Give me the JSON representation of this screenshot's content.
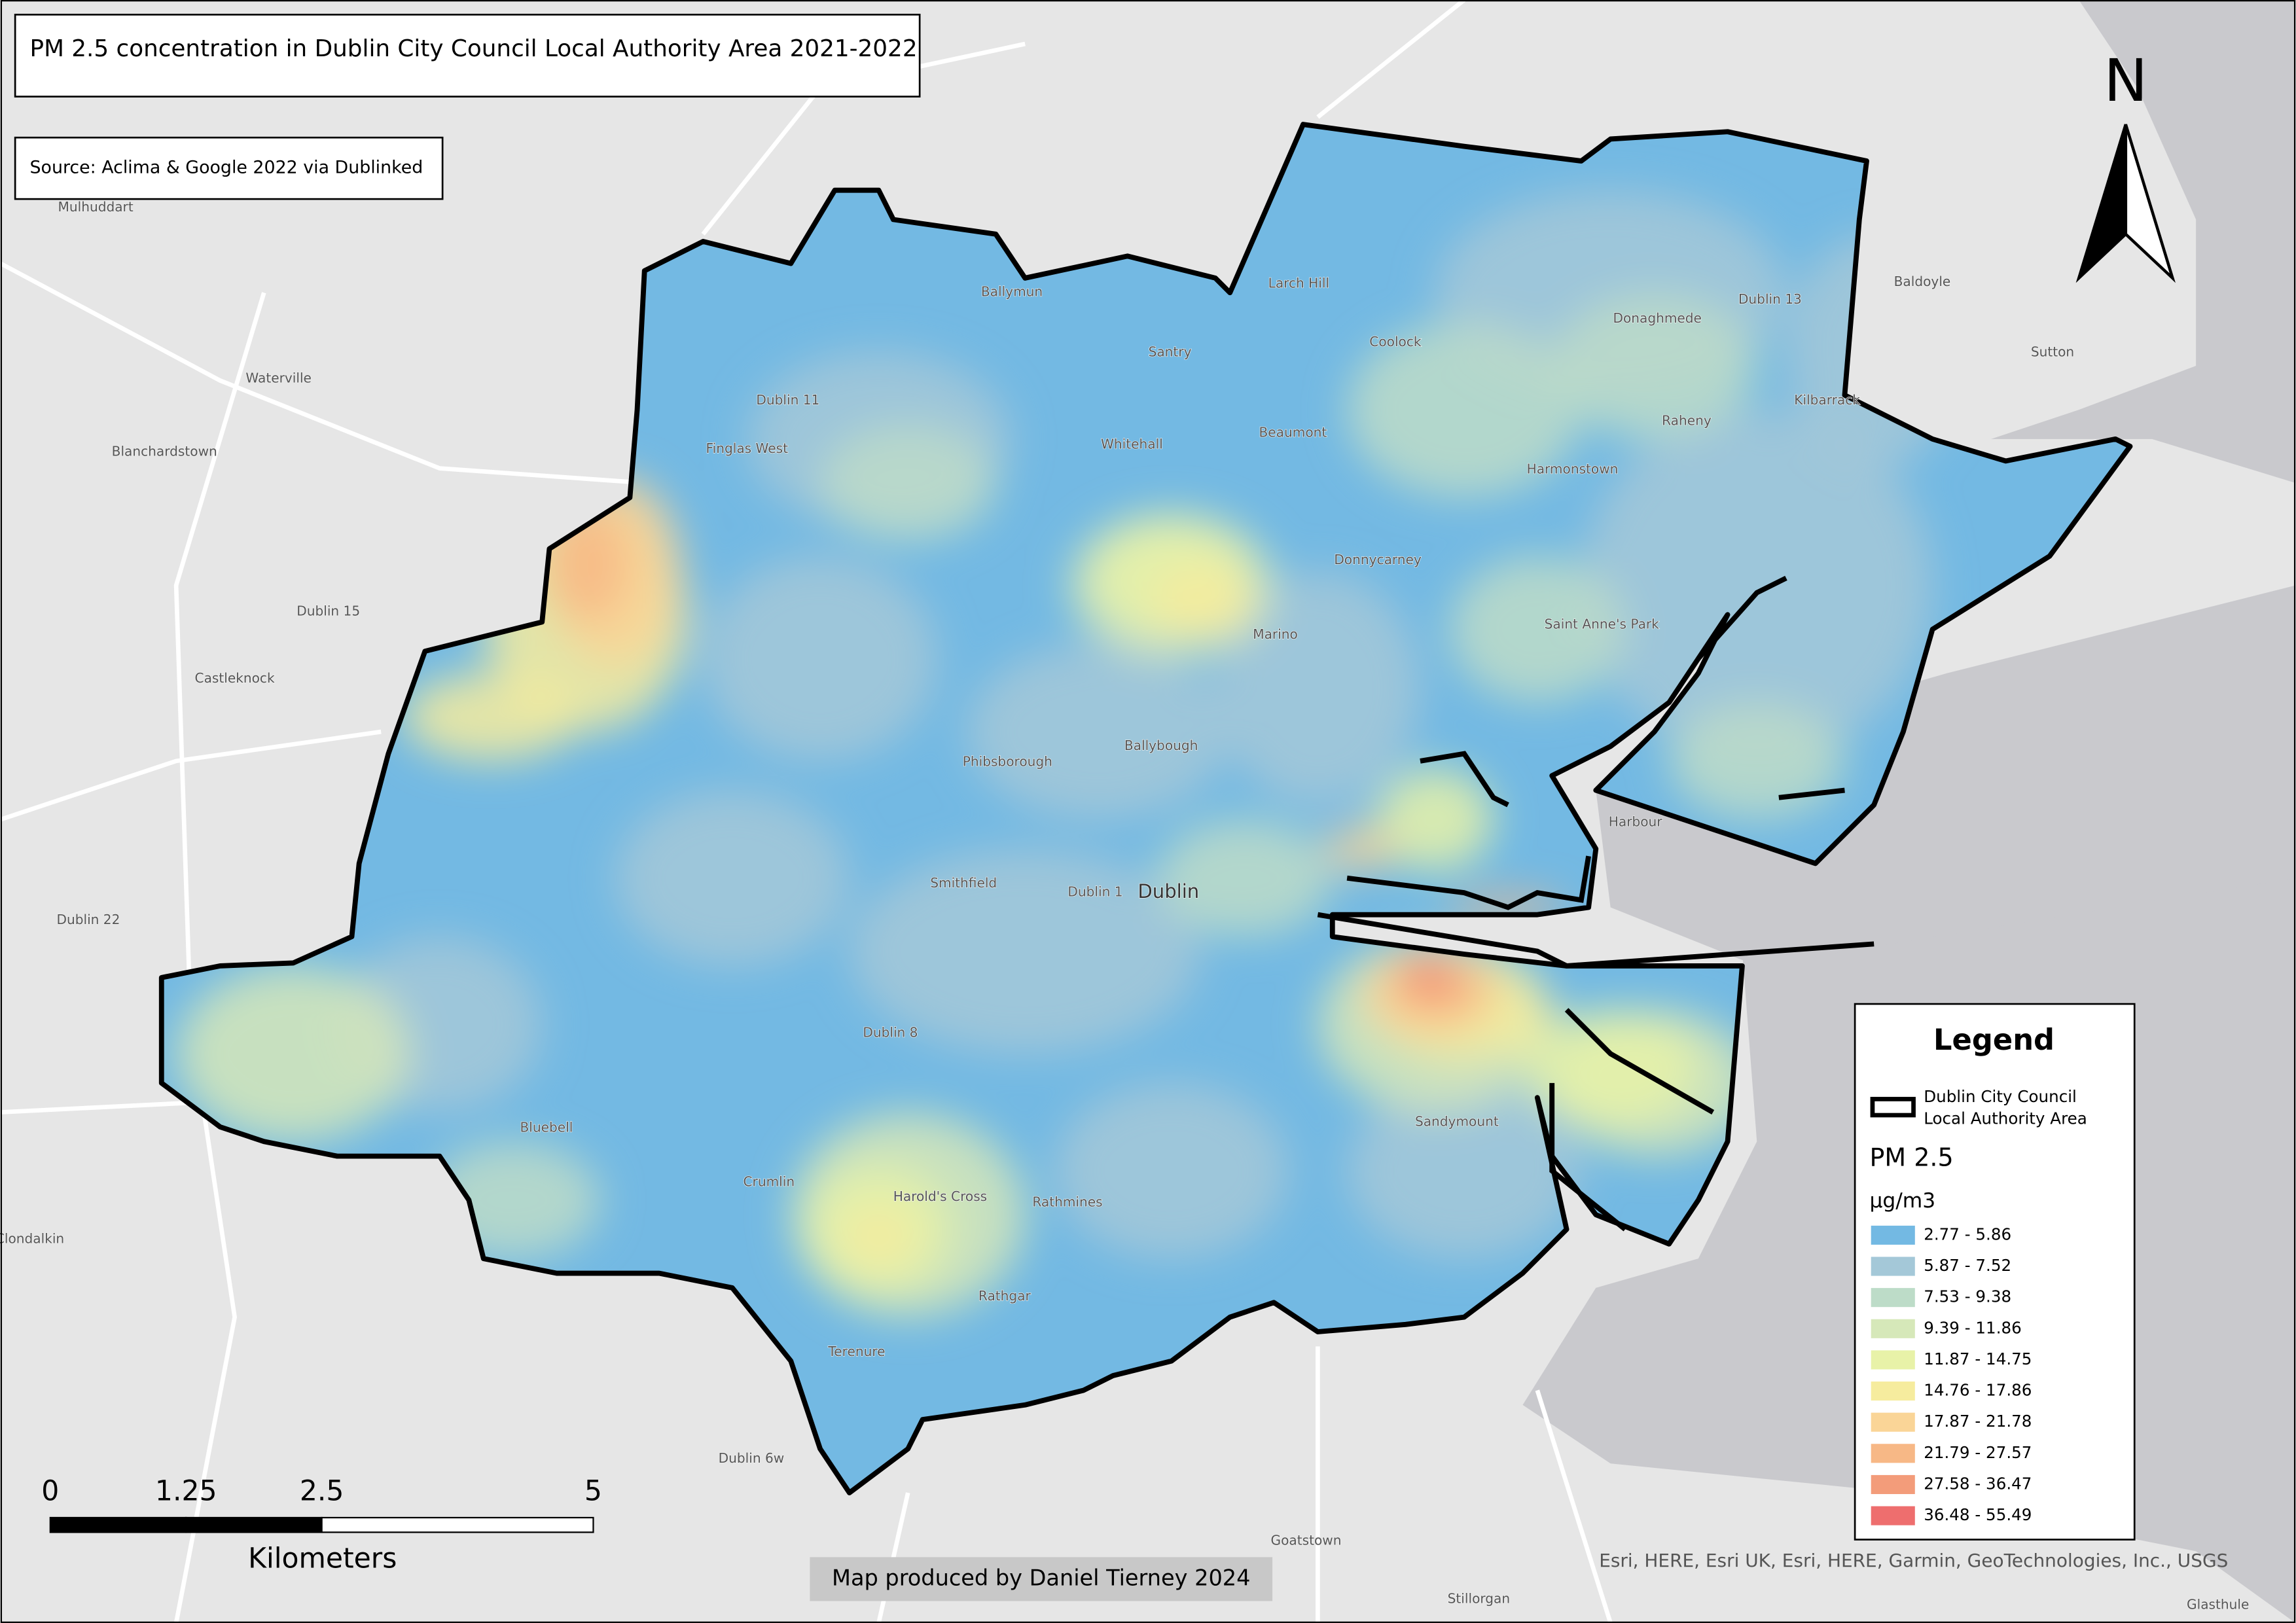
{
  "title": "PM 2.5 concentration in Dublin City Council Local Authority Area 2021-2022",
  "source": "Source: Aclima & Google 2022 via Dublinked",
  "north_arrow": "N",
  "places": [
    "Mulhuddart",
    "Waterville",
    "Blanchardstown",
    "Dublin 15",
    "Castleknock",
    "Dublin 22",
    "Clondalkin",
    "Bluebell",
    "Crumlin",
    "Harold's Cross",
    "Rathmines",
    "Rathgar",
    "Terenure",
    "Dublin 6w",
    "Goatstown",
    "Stillorgan",
    "Glasthule",
    "Sandymount",
    "Dublin 8",
    "Smithfield",
    "Dublin 1",
    "Dublin",
    "Phibsborough",
    "Ballybough",
    "Marino",
    "Donnycarney",
    "Harmonstown",
    "Saint Anne's Park",
    "Raheny",
    "Kilbarrack",
    "Donaghmede",
    "Dublin 13",
    "Coolock",
    "Beaumont",
    "Whitehall",
    "Santry",
    "Larch Hill",
    "Ballymun",
    "Dublin 11",
    "Finglas West",
    "Baldoyle",
    "Sutton",
    "Harbour"
  ],
  "legend": {
    "title": "Legend",
    "boundary_label": [
      "Dublin City Council",
      "Local Authority Area"
    ],
    "field": "PM 2.5",
    "unit": "µg/m3",
    "items": [
      {
        "label": "2.77 - 5.86",
        "color": "#73b9e3"
      },
      {
        "label": "5.87 - 7.52",
        "color": "#a4c8d8"
      },
      {
        "label": "7.53 - 9.38",
        "color": "#bddcc8"
      },
      {
        "label": "9.39 - 11.86",
        "color": "#d6e8b9"
      },
      {
        "label": "11.87 - 14.75",
        "color": "#e8f2a8"
      },
      {
        "label": "14.76 - 17.86",
        "color": "#f6ec9e"
      },
      {
        "label": "17.87 - 21.78",
        "color": "#fad597"
      },
      {
        "label": "21.79 - 27.57",
        "color": "#f7b886"
      },
      {
        "label": "27.58 - 36.47",
        "color": "#f39c7a"
      },
      {
        "label": "36.48 - 55.49",
        "color": "#ee6e6e"
      }
    ]
  },
  "scale_bar": {
    "ticks": [
      0,
      1.25,
      2.5,
      5
    ],
    "unit": "Kilometers"
  },
  "credit": "Map produced by Daniel Tierney 2024",
  "attribution": "Esri, HERE, Esri UK, Esri, HERE, Garmin, GeoTechnologies, Inc., USGS"
}
